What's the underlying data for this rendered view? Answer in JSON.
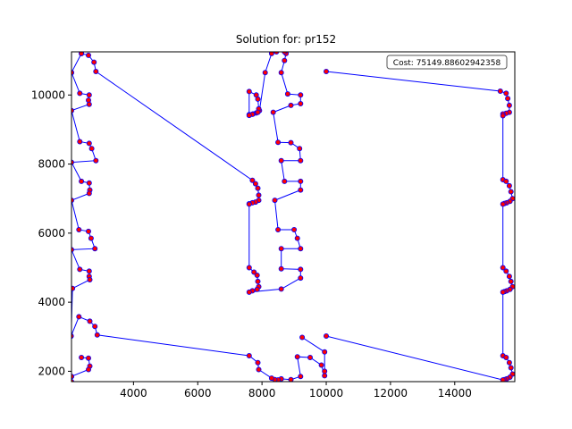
{
  "chart_data": {
    "type": "line",
    "title": "Solution for: pr152",
    "annotation": "Cost: 75149.88602942358",
    "xlabel": "",
    "ylabel": "",
    "xlim": [
      2070,
      15870
    ],
    "ylim": [
      1700,
      11250
    ],
    "x_ticks": [
      4000,
      6000,
      8000,
      10000,
      12000,
      14000
    ],
    "y_ticks": [
      2000,
      4000,
      6000,
      8000,
      10000
    ],
    "x_tick_labels": [
      "4000",
      "6000",
      "8000",
      "10000",
      "12000",
      "14000"
    ],
    "y_tick_labels": [
      "2000",
      "4000",
      "6000",
      "8000",
      "10000"
    ],
    "route_color": "#0000ff",
    "node_color": "#ff0000",
    "tour": [
      [
        2380,
        11200
      ],
      [
        2600,
        11150
      ],
      [
        2770,
        10950
      ],
      [
        2830,
        10680
      ],
      [
        7700,
        7530
      ],
      [
        7800,
        7430
      ],
      [
        7870,
        7300
      ],
      [
        7900,
        7100
      ],
      [
        7900,
        6950
      ],
      [
        7800,
        6900
      ],
      [
        7700,
        6880
      ],
      [
        7600,
        6850
      ],
      [
        7600,
        6840
      ],
      [
        7600,
        5000
      ],
      [
        7750,
        4870
      ],
      [
        7850,
        4780
      ],
      [
        7870,
        4600
      ],
      [
        7900,
        4450
      ],
      [
        7850,
        4370
      ],
      [
        7700,
        4330
      ],
      [
        7600,
        4290
      ],
      [
        8600,
        4380
      ],
      [
        9200,
        4700
      ],
      [
        9200,
        4950
      ],
      [
        8600,
        4970
      ],
      [
        8600,
        5550
      ],
      [
        9200,
        5550
      ],
      [
        9100,
        5850
      ],
      [
        9000,
        6100
      ],
      [
        8500,
        6100
      ],
      [
        8400,
        6950
      ],
      [
        9200,
        7250
      ],
      [
        9200,
        7500
      ],
      [
        8700,
        7500
      ],
      [
        8600,
        8100
      ],
      [
        9200,
        8100
      ],
      [
        9170,
        8450
      ],
      [
        8900,
        8620
      ],
      [
        8500,
        8630
      ],
      [
        8350,
        9500
      ],
      [
        8900,
        9700
      ],
      [
        9200,
        9750
      ],
      [
        9200,
        10000
      ],
      [
        8800,
        10030
      ],
      [
        8600,
        10650
      ],
      [
        8700,
        11000
      ],
      [
        8750,
        11200
      ],
      [
        8700,
        11250
      ],
      [
        8450,
        11250
      ],
      [
        8300,
        11200
      ],
      [
        8100,
        10650
      ],
      [
        7920,
        9550
      ],
      [
        7820,
        9480
      ],
      [
        7720,
        9450
      ],
      [
        7600,
        9430
      ],
      [
        7600,
        10100
      ],
      [
        7820,
        10000
      ],
      [
        7870,
        9880
      ],
      [
        7900,
        9600
      ],
      [
        7870,
        9500
      ],
      [
        7700,
        9440
      ],
      [
        7600,
        9410
      ]
    ],
    "tour_segment_2": [
      [
        9250,
        2980
      ],
      [
        9950,
        2560
      ],
      [
        9950,
        2000
      ],
      [
        9950,
        1870
      ],
      [
        9850,
        2180
      ],
      [
        9500,
        2400
      ],
      [
        9100,
        2420
      ],
      [
        9200,
        1850
      ],
      [
        8900,
        1760
      ],
      [
        8600,
        1780
      ],
      [
        8500,
        1750
      ],
      [
        8400,
        1760
      ],
      [
        8300,
        1800
      ],
      [
        7900,
        2050
      ],
      [
        7870,
        2250
      ],
      [
        7600,
        2450
      ],
      [
        2870,
        3050
      ],
      [
        2800,
        3300
      ],
      [
        2640,
        3450
      ],
      [
        2300,
        3580
      ],
      [
        2060,
        3020
      ],
      [
        2070,
        1850
      ],
      [
        2070,
        1700
      ]
    ],
    "tour_segment_3": [
      [
        10000,
        10680
      ],
      [
        15420,
        10110
      ],
      [
        15600,
        10050
      ],
      [
        15650,
        9900
      ],
      [
        15700,
        9700
      ],
      [
        15700,
        9500
      ],
      [
        15600,
        9470
      ],
      [
        15500,
        9450
      ],
      [
        15500,
        9400
      ],
      [
        15500,
        7550
      ],
      [
        15600,
        7500
      ],
      [
        15700,
        7370
      ],
      [
        15750,
        7200
      ],
      [
        15800,
        7000
      ],
      [
        15720,
        6920
      ],
      [
        15620,
        6880
      ],
      [
        15550,
        6860
      ],
      [
        15500,
        6840
      ],
      [
        15500,
        5000
      ],
      [
        15600,
        4900
      ],
      [
        15700,
        4750
      ],
      [
        15750,
        4600
      ],
      [
        15800,
        4450
      ],
      [
        15720,
        4370
      ],
      [
        15620,
        4330
      ],
      [
        15550,
        4310
      ],
      [
        15500,
        4290
      ],
      [
        15500,
        2450
      ],
      [
        15600,
        2400
      ],
      [
        15700,
        2250
      ],
      [
        15750,
        2100
      ],
      [
        15800,
        1920
      ],
      [
        15720,
        1830
      ],
      [
        15620,
        1780
      ],
      [
        15550,
        1760
      ],
      [
        15500,
        1750
      ],
      [
        10000,
        3020
      ]
    ],
    "tour_segment_4": [
      [
        2070,
        10650
      ],
      [
        2380,
        11200
      ],
      [
        2070,
        10650
      ],
      [
        2330,
        10050
      ],
      [
        2620,
        10000
      ],
      [
        2600,
        9850
      ],
      [
        2620,
        9730
      ],
      [
        2070,
        9550
      ],
      [
        2330,
        8650
      ],
      [
        2620,
        8600
      ],
      [
        2700,
        8450
      ],
      [
        2830,
        8100
      ],
      [
        2070,
        8050
      ],
      [
        2380,
        7500
      ],
      [
        2620,
        7450
      ],
      [
        2640,
        7250
      ],
      [
        2620,
        7150
      ],
      [
        2070,
        6950
      ],
      [
        2300,
        6100
      ],
      [
        2600,
        6050
      ],
      [
        2680,
        5850
      ],
      [
        2800,
        5550
      ],
      [
        2070,
        5520
      ],
      [
        2330,
        4950
      ],
      [
        2620,
        4900
      ],
      [
        2620,
        4750
      ],
      [
        2640,
        4650
      ],
      [
        2100,
        4400
      ],
      [
        2060,
        3020
      ]
    ],
    "tour_segment_5": [
      [
        2380,
        2400
      ],
      [
        2600,
        2380
      ],
      [
        2640,
        2150
      ],
      [
        2600,
        2050
      ],
      [
        2070,
        1850
      ]
    ]
  }
}
